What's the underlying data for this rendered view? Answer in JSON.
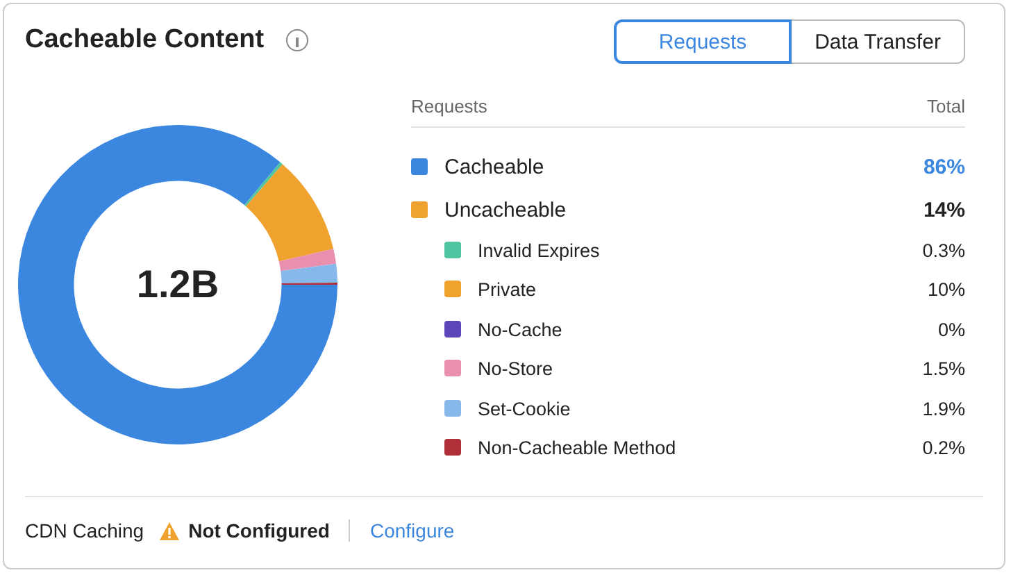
{
  "chart_data": {
    "type": "donut",
    "title": "Cacheable Content",
    "categories": [
      "Cacheable",
      "Invalid Expires",
      "Private",
      "No-Cache",
      "No-Store",
      "Set-Cookie",
      "Non-Cacheable Method"
    ],
    "values": [
      86,
      0.3,
      10,
      0,
      1.5,
      1.9,
      0.2
    ],
    "value_labels": [
      "86%",
      "0.3%",
      "10%",
      "0%",
      "1.5%",
      "1.9%",
      "0.2%"
    ],
    "colors": [
      "#3b87e0",
      "#4fc5a1",
      "#f0a22e",
      "#5b45b8",
      "#e98fb0",
      "#86b8ec",
      "#b0303a"
    ],
    "legend": "right",
    "annotations": [
      "Requests",
      "Data Transfer",
      "Requests",
      "Total",
      "Uncacheable",
      "14%",
      "1.2B",
      "CDN Caching",
      "Not Configured",
      "Configure"
    ]
  }
}
